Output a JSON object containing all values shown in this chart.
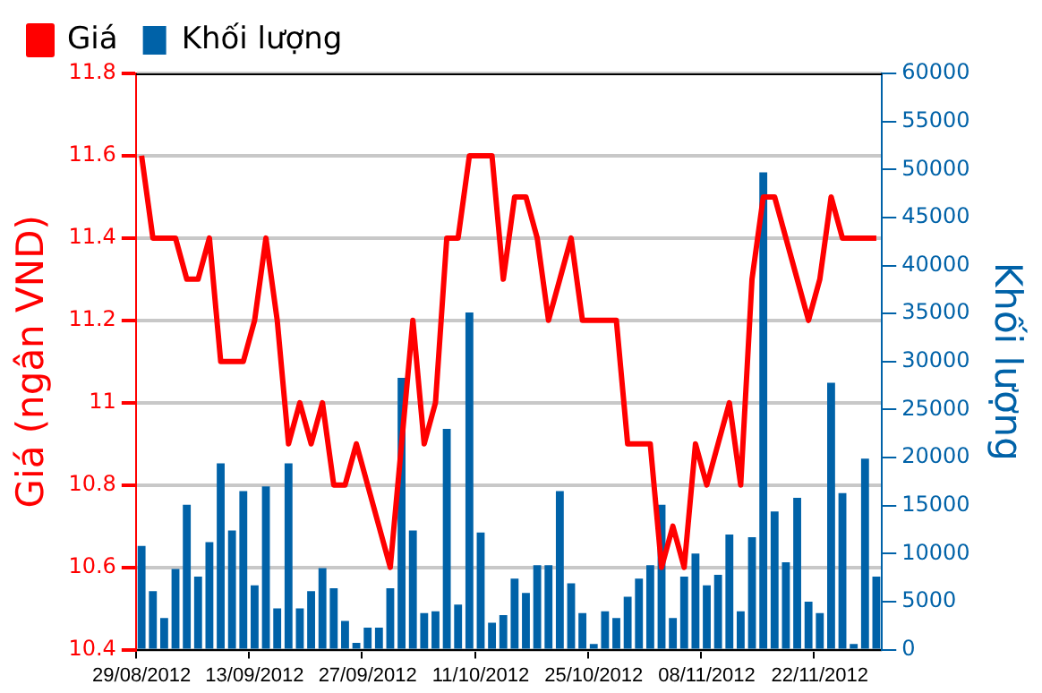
{
  "chart_data": {
    "type": "bar",
    "ylabel": "Giá (ngân VND)",
    "y2label": "Khối lượng",
    "categories": [
      "29/08/2012",
      null,
      null,
      null,
      null,
      null,
      null,
      null,
      null,
      null,
      "13/09/2012",
      null,
      null,
      null,
      null,
      null,
      null,
      null,
      null,
      null,
      "27/09/2012",
      null,
      null,
      null,
      null,
      null,
      null,
      null,
      null,
      null,
      "11/10/2012",
      null,
      null,
      null,
      null,
      null,
      null,
      null,
      null,
      null,
      "25/10/2012",
      null,
      null,
      null,
      null,
      null,
      null,
      null,
      null,
      null,
      "08/11/2012",
      null,
      null,
      null,
      null,
      null,
      null,
      null,
      null,
      null,
      "22/11/2012",
      null,
      null,
      null,
      null,
      null
    ],
    "series": [
      {
        "name": "Giá",
        "type": "line",
        "color": "#ff0000",
        "values": [
          11.6,
          11.4,
          11.4,
          11.4,
          11.3,
          11.3,
          11.4,
          11.1,
          11.1,
          11.1,
          11.2,
          11.4,
          11.2,
          10.9,
          11.0,
          10.9,
          11.0,
          10.8,
          10.8,
          10.9,
          10.8,
          10.7,
          10.6,
          10.9,
          11.2,
          10.9,
          11.0,
          11.4,
          11.4,
          11.6,
          11.6,
          11.6,
          11.3,
          11.5,
          11.5,
          11.4,
          11.2,
          11.3,
          11.4,
          11.2,
          11.2,
          11.2,
          11.2,
          10.9,
          10.9,
          10.9,
          10.6,
          10.7,
          10.6,
          10.9,
          10.8,
          10.9,
          11.0,
          10.8,
          11.3,
          11.5,
          11.5,
          11.4,
          11.3,
          11.2,
          11.3,
          11.5,
          11.4,
          11.4,
          11.4,
          11.4
        ]
      },
      {
        "name": "Khối lượng",
        "axis": "y2",
        "color": "#0062a8",
        "values": [
          10800,
          6100,
          3300,
          8400,
          15100,
          7600,
          11200,
          19400,
          12400,
          16500,
          6700,
          17000,
          4300,
          19400,
          4300,
          6100,
          8500,
          6400,
          3000,
          700,
          2300,
          2300,
          6400,
          28300,
          12400,
          3800,
          4000,
          23000,
          4700,
          35100,
          12200,
          2800,
          3600,
          7400,
          5900,
          8800,
          8800,
          16500,
          6900,
          3800,
          600,
          4000,
          3300,
          5500,
          7400,
          8800,
          15100,
          3300,
          7600,
          10000,
          6700,
          7800,
          12000,
          4000,
          11700,
          49700,
          14400,
          9100,
          15800,
          5000,
          3800,
          27800,
          16300,
          600,
          19900,
          7600
        ]
      }
    ],
    "ylim": [
      10.4,
      11.8
    ],
    "yticks": [
      10.4,
      10.6,
      10.8,
      11,
      11.2,
      11.4,
      11.6,
      11.8
    ],
    "y2lim": [
      0,
      60000
    ],
    "y2ticks": [
      0,
      5000,
      10000,
      15000,
      20000,
      25000,
      30000,
      35000,
      40000,
      45000,
      50000,
      55000,
      60000
    ],
    "grid": "y",
    "legend": "top left"
  }
}
